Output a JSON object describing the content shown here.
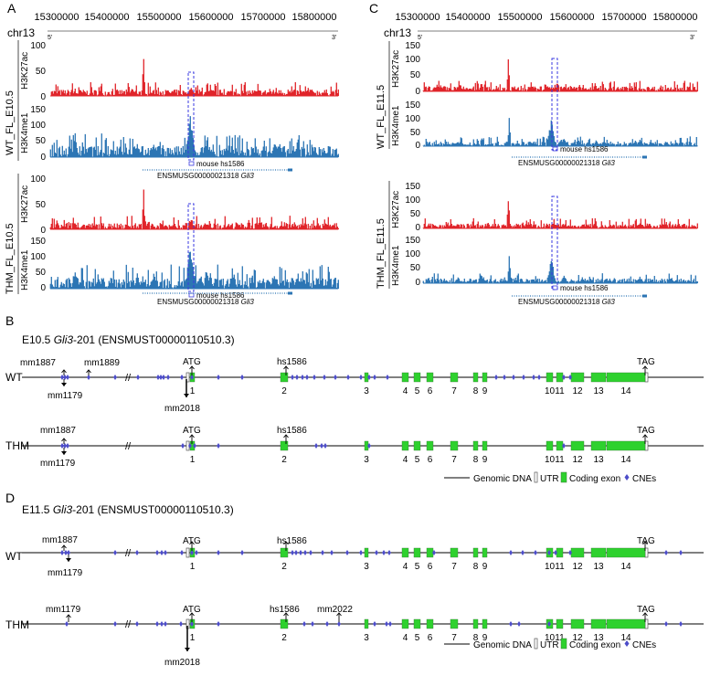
{
  "panels": {
    "A": {
      "letter": "A",
      "chrom": "chr13",
      "ticks": [
        "15300000",
        "15400000",
        "15500000",
        "15600000",
        "15700000",
        "15800000"
      ],
      "five": "5'",
      "three": "3'",
      "group1": "WT_FL_E10.5",
      "group2": "THM_FL_E10.5",
      "mark1": "H3K27ac",
      "mark2": "H3K4me1",
      "yticks1": [
        "100",
        "50",
        "0"
      ],
      "yticks2": [
        "150",
        "100",
        "50",
        "0"
      ],
      "element": "mouse hs1586",
      "gene_id": "ENSMUSG00000021318",
      "gene_name": "Gli3"
    },
    "C": {
      "letter": "C",
      "chrom": "chr13",
      "ticks": [
        "15300000",
        "15400000",
        "15500000",
        "15600000",
        "15700000",
        "15800000"
      ],
      "five": "5'",
      "three": "3'",
      "group1": "WT_FL_E11.5",
      "group2": "THM_FL_E11.5",
      "mark1": "H3K27ac",
      "mark2": "H3K4me1",
      "yticks1": [
        "150",
        "100",
        "50",
        "0"
      ],
      "yticks2": [
        "150",
        "100",
        "50",
        "0"
      ],
      "element": "mouse hs1586",
      "gene_id": "ENSMUSG00000021318",
      "gene_name": "Gli3"
    },
    "B": {
      "letter": "B",
      "title_pre": "E10.5 ",
      "title_gene": "Gli3",
      "title_post": "-201 (ENSMUST00000110510.3)",
      "wt": "WT",
      "thm": "THM",
      "labels": {
        "mm1887": "mm1887",
        "mm1889": "mm1889",
        "mm1179": "mm1179",
        "mm2018": "mm2018",
        "atg": "ATG",
        "tag": "TAG",
        "hs1586": "hs1586"
      }
    },
    "D": {
      "letter": "D",
      "title_pre": "E11.5 ",
      "title_gene": "Gli3",
      "title_post": "-201 (ENSMUST00000110510.3)",
      "wt": "WT",
      "thm": "THM",
      "labels": {
        "mm1887": "mm1887",
        "mm1179": "mm1179",
        "mm2018": "mm2018",
        "mm2022": "mm2022",
        "atg": "ATG",
        "tag": "TAG",
        "hs1586": "hs1586"
      }
    }
  },
  "exons": [
    "1",
    "2",
    "3",
    "4",
    "5",
    "6",
    "7",
    "8",
    "9",
    "10",
    "11",
    "12",
    "13",
    "14"
  ],
  "legend": {
    "genomic": "Genomic DNA",
    "utr": "UTR",
    "coding": "Coding exon",
    "cnes": "CNEs"
  },
  "colors": {
    "h3k27ac": "#e0242a",
    "h3k4me1": "#2c75b4",
    "exon": "#2ed12e",
    "cne": "#4d4dc9",
    "box": "#3a3ae0"
  }
}
